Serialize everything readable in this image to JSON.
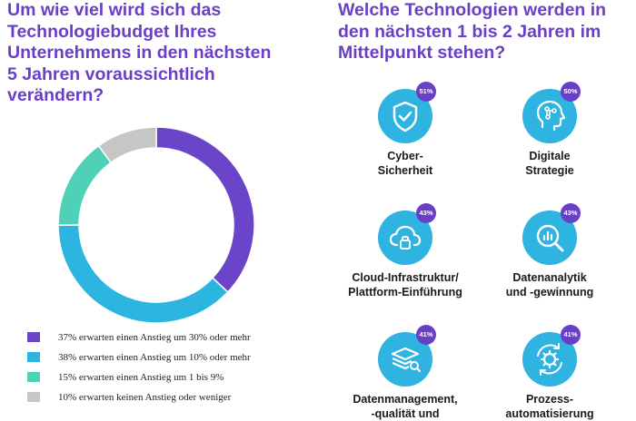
{
  "left_question": "Um wie viel wird sich das Technologiebudget Ihres Unternehmens in den nächsten 5 Jahren voraussichtlich verändern?",
  "right_question": "Welche Technologien werden in den nächsten 1 bis 2 Jahren im Mittelpunkt stehen?",
  "chart_data": {
    "type": "pie",
    "variant": "donut",
    "slices": [
      {
        "value": 37,
        "label": "37% erwarten einen Anstieg um 30% oder mehr",
        "color": "#6A45C9"
      },
      {
        "value": 38,
        "label": "38% erwarten einen Anstieg um 10% oder mehr",
        "color": "#2BB5E0"
      },
      {
        "value": 15,
        "label": "15% erwarten einen Anstieg um 1 bis 9%",
        "color": "#4FD1B8"
      },
      {
        "value": 10,
        "label": "10% erwarten keinen Anstieg oder weniger",
        "color": "#C6C6C6"
      }
    ],
    "legend_position": "bottom-left"
  },
  "technologies": [
    {
      "label_lines": [
        "Cyber-",
        "Sicherheit"
      ],
      "percent": "51%",
      "icon": "shield-check-icon"
    },
    {
      "label_lines": [
        "Digitale",
        "Strategie"
      ],
      "percent": "50%",
      "icon": "brain-circuit-icon"
    },
    {
      "label_lines": [
        "Cloud-Infrastruktur/",
        "Plattform-Einführung"
      ],
      "percent": "43%",
      "icon": "cloud-lock-icon"
    },
    {
      "label_lines": [
        "Datenanalytik",
        "und -gewinnung"
      ],
      "percent": "43%",
      "icon": "magnifier-chart-icon"
    },
    {
      "label_lines": [
        "Datenmanagement,",
        "-qualität und"
      ],
      "percent": "41%",
      "icon": "data-layers-icon"
    },
    {
      "label_lines": [
        "Prozess-",
        "automatisierung"
      ],
      "percent": "41%",
      "icon": "process-gear-icon"
    }
  ],
  "colors": {
    "title": "#6A3FC8",
    "icon_bg": "#2FB3E0",
    "badge_bg": "#6A3FC8"
  }
}
